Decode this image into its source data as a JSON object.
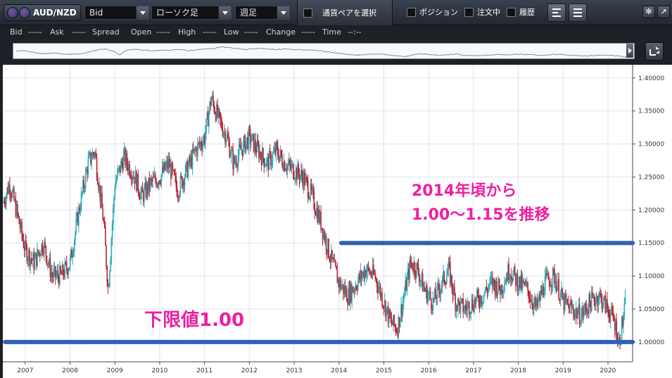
{
  "toolbar": {
    "pair_label": "AUD/NZD",
    "price_type": "Bid",
    "chart_type": "ローソク足",
    "period": "週足",
    "pair_select_label": "通貨ペアを選択",
    "option_position": "ポジション",
    "option_orders": "注文中",
    "option_history": "履歴"
  },
  "infobar": {
    "bid_label": "Bid",
    "bid_value": "-----",
    "ask_label": "Ask",
    "ask_value": "-----",
    "spread_label": "Spread",
    "open_label": "Open",
    "open_value": "-----",
    "high_label": "High",
    "high_value": "-----",
    "low_label": "Low",
    "low_value": "-----",
    "change_label": "Change",
    "change_value": "-----",
    "time_label": "Time",
    "time_value": "--:--"
  },
  "annotations": {
    "range_line1": "2014年頃から",
    "range_line2": "1.00～1.15を推移",
    "lower_limit": "下限値1.00"
  },
  "colors": {
    "up": "#29a9b8",
    "down": "#c0202a",
    "level_line": "#2e62b3",
    "annotation": "#ee1fa2"
  },
  "chart_data": {
    "type": "candlestick",
    "x_label": "",
    "y_label": "",
    "x_ticks": [
      "2007",
      "2008",
      "2009",
      "2010",
      "2011",
      "2012",
      "2013",
      "2014",
      "2015",
      "2016",
      "2017",
      "2018",
      "2019",
      "2020"
    ],
    "y_ticks": [
      "1.40000",
      "1.35000",
      "1.30000",
      "1.25000",
      "1.20000",
      "1.15000",
      "1.10000",
      "1.05000",
      "1.00000"
    ],
    "ylim": [
      0.97,
      1.42
    ],
    "xlim": [
      2006.5,
      2020.55
    ],
    "grid": true,
    "horizontal_levels": [
      {
        "value": 1.15,
        "from": 2014.05,
        "to": 2020.55
      },
      {
        "value": 1.0,
        "from": 2006.55,
        "to": 2020.55
      }
    ],
    "price_path": [
      [
        2006.5,
        1.21
      ],
      [
        2006.65,
        1.24
      ],
      [
        2006.8,
        1.2
      ],
      [
        2007.0,
        1.14
      ],
      [
        2007.2,
        1.12
      ],
      [
        2007.4,
        1.15
      ],
      [
        2007.6,
        1.1
      ],
      [
        2007.8,
        1.1
      ],
      [
        2008.0,
        1.12
      ],
      [
        2008.2,
        1.2
      ],
      [
        2008.4,
        1.27
      ],
      [
        2008.55,
        1.29
      ],
      [
        2008.75,
        1.18
      ],
      [
        2008.85,
        1.08
      ],
      [
        2009.0,
        1.24
      ],
      [
        2009.2,
        1.28
      ],
      [
        2009.45,
        1.25
      ],
      [
        2009.6,
        1.22
      ],
      [
        2009.8,
        1.24
      ],
      [
        2010.0,
        1.25
      ],
      [
        2010.2,
        1.27
      ],
      [
        2010.4,
        1.23
      ],
      [
        2010.6,
        1.26
      ],
      [
        2010.8,
        1.29
      ],
      [
        2011.0,
        1.31
      ],
      [
        2011.15,
        1.37
      ],
      [
        2011.3,
        1.34
      ],
      [
        2011.5,
        1.31
      ],
      [
        2011.65,
        1.27
      ],
      [
        2011.8,
        1.29
      ],
      [
        2012.0,
        1.31
      ],
      [
        2012.2,
        1.29
      ],
      [
        2012.4,
        1.27
      ],
      [
        2012.6,
        1.29
      ],
      [
        2012.8,
        1.27
      ],
      [
        2013.0,
        1.26
      ],
      [
        2013.2,
        1.25
      ],
      [
        2013.4,
        1.22
      ],
      [
        2013.6,
        1.18
      ],
      [
        2013.8,
        1.13
      ],
      [
        2014.0,
        1.09
      ],
      [
        2014.2,
        1.07
      ],
      [
        2014.4,
        1.09
      ],
      [
        2014.6,
        1.11
      ],
      [
        2014.8,
        1.1
      ],
      [
        2015.0,
        1.06
      ],
      [
        2015.15,
        1.03
      ],
      [
        2015.3,
        1.02
      ],
      [
        2015.45,
        1.07
      ],
      [
        2015.6,
        1.12
      ],
      [
        2015.75,
        1.11
      ],
      [
        2015.9,
        1.08
      ],
      [
        2016.1,
        1.06
      ],
      [
        2016.3,
        1.09
      ],
      [
        2016.45,
        1.11
      ],
      [
        2016.6,
        1.06
      ],
      [
        2016.8,
        1.05
      ],
      [
        2017.0,
        1.06
      ],
      [
        2017.2,
        1.07
      ],
      [
        2017.4,
        1.09
      ],
      [
        2017.6,
        1.08
      ],
      [
        2017.8,
        1.11
      ],
      [
        2018.0,
        1.09
      ],
      [
        2018.2,
        1.08
      ],
      [
        2018.4,
        1.05
      ],
      [
        2018.6,
        1.09
      ],
      [
        2018.8,
        1.1
      ],
      [
        2019.0,
        1.06
      ],
      [
        2019.2,
        1.05
      ],
      [
        2019.4,
        1.04
      ],
      [
        2019.6,
        1.06
      ],
      [
        2019.8,
        1.07
      ],
      [
        2020.0,
        1.05
      ],
      [
        2020.15,
        1.03
      ],
      [
        2020.25,
        1.0
      ],
      [
        2020.4,
        1.06
      ]
    ]
  }
}
